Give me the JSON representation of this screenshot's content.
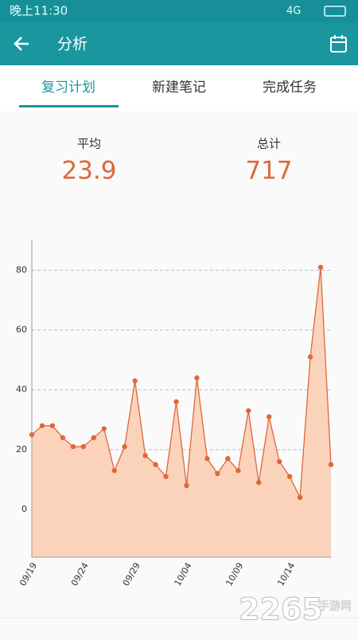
{
  "status_bar": {
    "time": "晚上11:30",
    "network": "4G"
  },
  "app_bar": {
    "title": "分析"
  },
  "tabs": [
    "复习计划",
    "新建笔记",
    "完成任务"
  ],
  "stats": [
    {
      "label": "平均",
      "value": "23.9"
    },
    {
      "label": "总计",
      "value": "717"
    }
  ],
  "chart_data": {
    "type": "line",
    "categories": [
      "09/19",
      null,
      null,
      null,
      null,
      "09/24",
      null,
      null,
      null,
      null,
      "09/29",
      null,
      null,
      null,
      null,
      "10/04",
      null,
      null,
      null,
      null,
      "10/09",
      null,
      null,
      null,
      null,
      "10/14",
      null,
      null,
      null,
      null
    ],
    "series": [
      {
        "color": "#e0673a",
        "fill": "#fbd3bb",
        "values": [
          25,
          28,
          28,
          24,
          21,
          21,
          24,
          27,
          13,
          21,
          43,
          18,
          15,
          11,
          36,
          8,
          44,
          17,
          12,
          17,
          13,
          33,
          9,
          31,
          16,
          11,
          4,
          51,
          81,
          15
        ]
      }
    ],
    "ylim": [
      -16,
      90
    ],
    "yticks": [
      0,
      20,
      40,
      60,
      80
    ],
    "grid": true
  },
  "watermark": {
    "brand": "2265",
    "text": "手游网"
  }
}
